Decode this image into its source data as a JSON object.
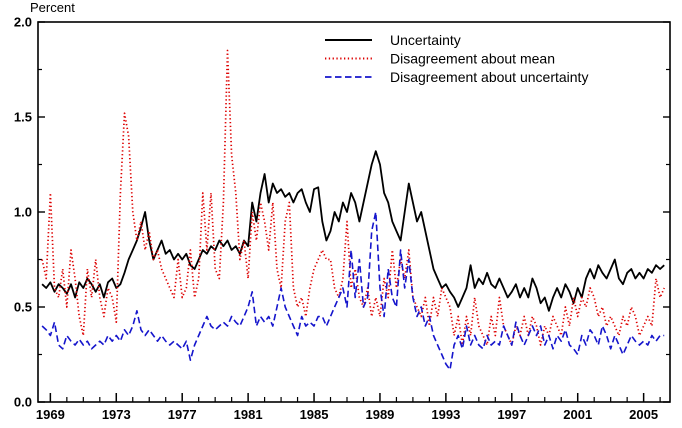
{
  "figure": {
    "y_axis_title": "Percent"
  },
  "chart_data": {
    "type": "line",
    "title": "",
    "xlabel": "",
    "ylabel": "Percent",
    "ylim": [
      0.0,
      2.0
    ],
    "yticks": [
      0.0,
      0.5,
      1.0,
      1.5,
      2.0
    ],
    "ytick_labels": [
      "0.0",
      "0.5",
      "1.0",
      "1.5",
      "2.0"
    ],
    "xlim": [
      1968.25,
      2006.6
    ],
    "xticks": [
      1969,
      1973,
      1977,
      1981,
      1985,
      1989,
      1993,
      1997,
      2001,
      2005
    ],
    "minor_xtick_start": 1969,
    "minor_xtick_end": 2006,
    "grid": false,
    "legend_position": "upper-center-right",
    "x_start": 1968.5,
    "x_step": 0.25,
    "series": [
      {
        "name": "Uncertainty",
        "color": "#000000",
        "dash": "",
        "width": 1.8,
        "values": [
          0.62,
          0.6,
          0.63,
          0.58,
          0.62,
          0.6,
          0.57,
          0.62,
          0.55,
          0.63,
          0.6,
          0.65,
          0.62,
          0.58,
          0.62,
          0.55,
          0.63,
          0.65,
          0.6,
          0.62,
          0.68,
          0.75,
          0.8,
          0.85,
          0.92,
          1.0,
          0.85,
          0.75,
          0.8,
          0.85,
          0.78,
          0.8,
          0.75,
          0.78,
          0.75,
          0.78,
          0.72,
          0.7,
          0.75,
          0.8,
          0.78,
          0.82,
          0.8,
          0.85,
          0.82,
          0.85,
          0.8,
          0.82,
          0.78,
          0.85,
          0.82,
          1.05,
          0.95,
          1.1,
          1.2,
          1.05,
          1.15,
          1.1,
          1.12,
          1.08,
          1.1,
          1.05,
          1.1,
          1.12,
          1.05,
          1.0,
          1.12,
          1.13,
          0.95,
          0.85,
          0.9,
          1.0,
          0.95,
          1.05,
          1.0,
          1.1,
          1.05,
          0.95,
          1.05,
          1.15,
          1.25,
          1.32,
          1.25,
          1.1,
          1.05,
          0.95,
          0.9,
          0.85,
          1.0,
          1.15,
          1.05,
          0.95,
          1.0,
          0.9,
          0.8,
          0.7,
          0.65,
          0.6,
          0.62,
          0.58,
          0.55,
          0.5,
          0.55,
          0.6,
          0.72,
          0.6,
          0.65,
          0.62,
          0.68,
          0.62,
          0.6,
          0.65,
          0.6,
          0.55,
          0.58,
          0.62,
          0.55,
          0.6,
          0.55,
          0.65,
          0.6,
          0.52,
          0.55,
          0.48,
          0.55,
          0.6,
          0.55,
          0.62,
          0.58,
          0.52,
          0.6,
          0.55,
          0.65,
          0.7,
          0.65,
          0.72,
          0.68,
          0.65,
          0.7,
          0.75,
          0.65,
          0.62,
          0.68,
          0.7,
          0.65,
          0.68,
          0.65,
          0.7,
          0.68,
          0.72,
          0.7,
          0.72
        ]
      },
      {
        "name": "Disagreement about mean",
        "color": "#dd0000",
        "dash": "1.3 2.5",
        "width": 1.7,
        "values": [
          0.75,
          0.65,
          1.1,
          0.6,
          0.55,
          0.7,
          0.5,
          0.8,
          0.65,
          0.45,
          0.35,
          0.7,
          0.55,
          0.75,
          0.55,
          0.45,
          0.6,
          0.55,
          0.42,
          1.1,
          1.52,
          1.4,
          1.0,
          0.85,
          0.95,
          0.8,
          0.9,
          0.75,
          0.8,
          0.7,
          0.65,
          0.6,
          0.55,
          0.75,
          0.55,
          0.6,
          0.8,
          0.55,
          0.65,
          1.1,
          0.8,
          1.1,
          0.7,
          0.65,
          1.05,
          1.85,
          1.3,
          1.1,
          0.75,
          0.85,
          0.65,
          1.0,
          0.85,
          1.05,
          0.95,
          0.8,
          1.05,
          0.7,
          0.6,
          0.95,
          1.05,
          0.6,
          0.5,
          0.55,
          0.45,
          0.6,
          0.7,
          0.75,
          0.8,
          0.75,
          0.75,
          0.6,
          0.55,
          0.65,
          0.95,
          0.6,
          0.7,
          0.55,
          0.5,
          0.6,
          0.45,
          0.55,
          0.45,
          0.65,
          0.55,
          0.8,
          0.6,
          0.75,
          0.65,
          0.8,
          0.55,
          0.5,
          0.45,
          0.55,
          0.4,
          0.55,
          0.45,
          0.6,
          0.55,
          0.5,
          0.35,
          0.45,
          0.3,
          0.45,
          0.35,
          0.55,
          0.4,
          0.35,
          0.3,
          0.45,
          0.35,
          0.55,
          0.4,
          0.35,
          0.3,
          0.4,
          0.35,
          0.45,
          0.35,
          0.45,
          0.4,
          0.3,
          0.4,
          0.35,
          0.45,
          0.4,
          0.35,
          0.5,
          0.4,
          0.55,
          0.45,
          0.55,
          0.5,
          0.6,
          0.55,
          0.45,
          0.5,
          0.4,
          0.45,
          0.4,
          0.35,
          0.45,
          0.4,
          0.5,
          0.45,
          0.35,
          0.4,
          0.45,
          0.4,
          0.65,
          0.55,
          0.6
        ]
      },
      {
        "name": "Disagreement about uncertainty",
        "color": "#1515cc",
        "dash": "6.5 3.5",
        "width": 1.6,
        "values": [
          0.4,
          0.38,
          0.35,
          0.42,
          0.3,
          0.28,
          0.35,
          0.32,
          0.3,
          0.33,
          0.3,
          0.32,
          0.28,
          0.3,
          0.32,
          0.3,
          0.35,
          0.32,
          0.35,
          0.32,
          0.38,
          0.35,
          0.4,
          0.48,
          0.38,
          0.35,
          0.38,
          0.35,
          0.32,
          0.35,
          0.32,
          0.3,
          0.32,
          0.3,
          0.28,
          0.32,
          0.22,
          0.3,
          0.35,
          0.4,
          0.45,
          0.4,
          0.38,
          0.4,
          0.42,
          0.4,
          0.45,
          0.42,
          0.4,
          0.45,
          0.5,
          0.58,
          0.4,
          0.45,
          0.42,
          0.45,
          0.4,
          0.5,
          0.6,
          0.5,
          0.45,
          0.4,
          0.35,
          0.45,
          0.4,
          0.42,
          0.4,
          0.45,
          0.45,
          0.4,
          0.45,
          0.5,
          0.55,
          0.6,
          0.5,
          0.8,
          0.55,
          0.75,
          0.5,
          0.55,
          0.9,
          1.0,
          0.6,
          0.45,
          0.7,
          0.55,
          0.5,
          0.8,
          0.6,
          0.75,
          0.55,
          0.45,
          0.5,
          0.4,
          0.45,
          0.35,
          0.3,
          0.25,
          0.2,
          0.17,
          0.3,
          0.35,
          0.28,
          0.4,
          0.3,
          0.35,
          0.3,
          0.28,
          0.35,
          0.3,
          0.32,
          0.3,
          0.4,
          0.35,
          0.3,
          0.42,
          0.35,
          0.3,
          0.35,
          0.4,
          0.35,
          0.4,
          0.3,
          0.35,
          0.28,
          0.35,
          0.32,
          0.38,
          0.3,
          0.28,
          0.25,
          0.35,
          0.3,
          0.38,
          0.35,
          0.3,
          0.4,
          0.35,
          0.28,
          0.35,
          0.3,
          0.25,
          0.3,
          0.35,
          0.32,
          0.3,
          0.32,
          0.3,
          0.35,
          0.32,
          0.35,
          0.35
        ]
      }
    ]
  }
}
